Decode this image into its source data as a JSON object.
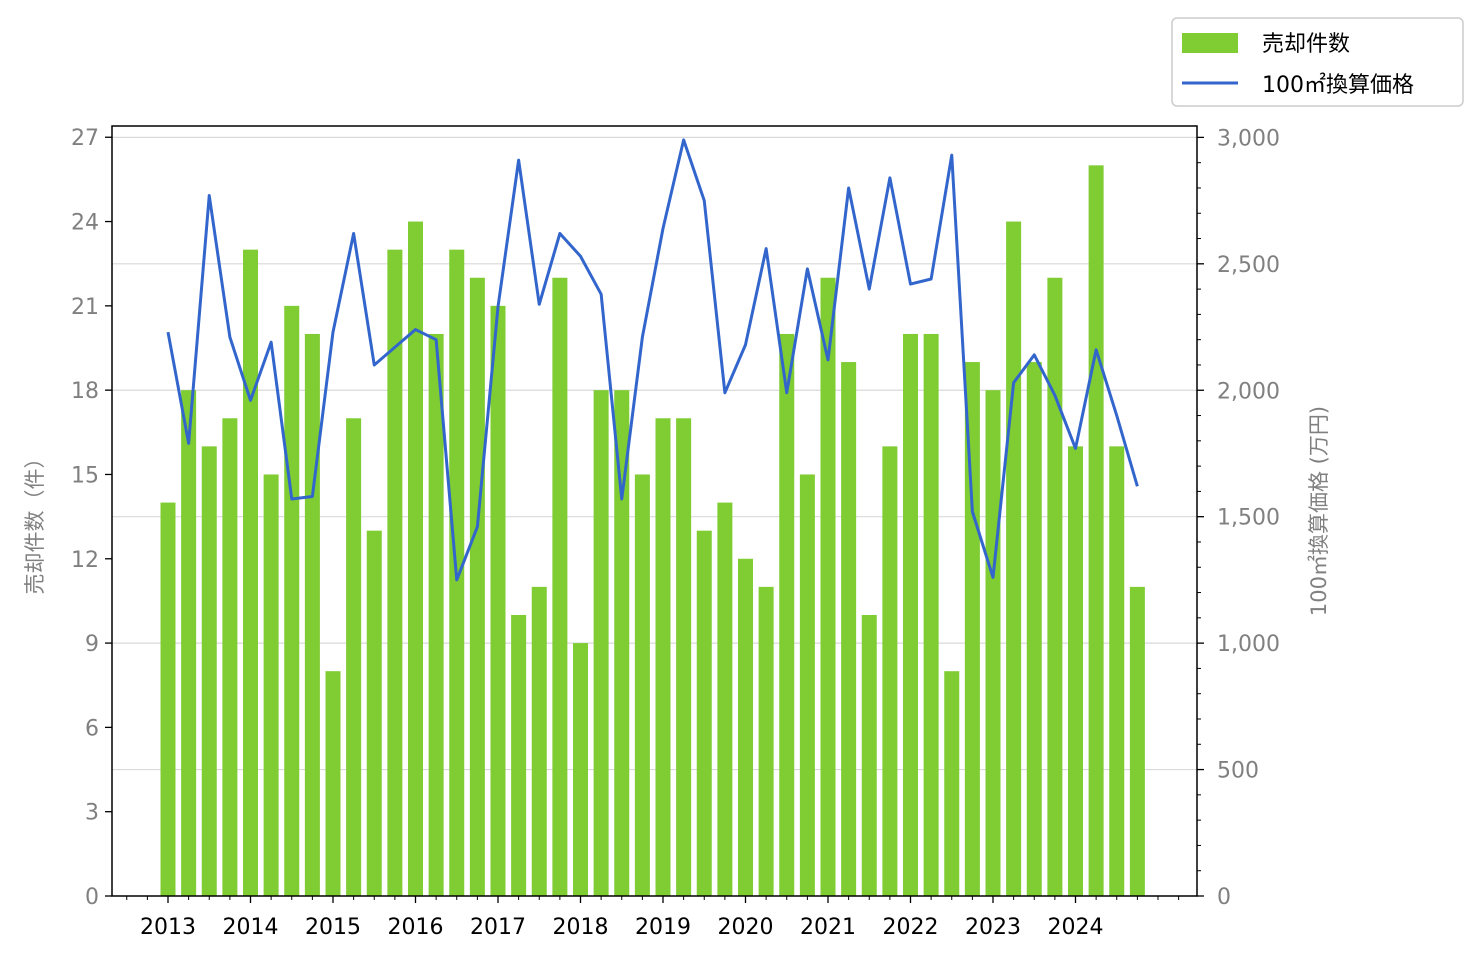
{
  "chart_data": {
    "type": "bar",
    "x": [
      "2013-01",
      "2013-04",
      "2013-07",
      "2013-10",
      "2014-01",
      "2014-04",
      "2014-07",
      "2014-10",
      "2015-01",
      "2015-04",
      "2015-07",
      "2015-10",
      "2016-01",
      "2016-04",
      "2016-07",
      "2016-10",
      "2017-01",
      "2017-04",
      "2017-07",
      "2017-10",
      "2018-01",
      "2018-04",
      "2018-07",
      "2018-10",
      "2019-01",
      "2019-04",
      "2019-07",
      "2019-10",
      "2020-01",
      "2020-04",
      "2020-07",
      "2020-10",
      "2021-01",
      "2021-04",
      "2021-07",
      "2021-10",
      "2022-01",
      "2022-04",
      "2022-07",
      "2022-10",
      "2023-01",
      "2023-04",
      "2023-07",
      "2023-10",
      "2024-01",
      "2024-04",
      "2024-07",
      "2024-10"
    ],
    "x_tick_labels": [
      "2013",
      "2014",
      "2015",
      "2016",
      "2017",
      "2018",
      "2019",
      "2020",
      "2021",
      "2022",
      "2023",
      "2024"
    ],
    "series": [
      {
        "name": "売却件数",
        "type": "bar",
        "axis": "left",
        "color": "#7fcc33",
        "values": [
          14,
          18,
          16,
          17,
          23,
          15,
          21,
          20,
          8,
          17,
          13,
          23,
          24,
          20,
          23,
          22,
          21,
          10,
          11,
          22,
          9,
          18,
          18,
          15,
          17,
          17,
          13,
          14,
          12,
          11,
          20,
          15,
          22,
          19,
          10,
          16,
          20,
          20,
          8,
          19,
          18,
          24,
          19,
          22,
          16,
          26,
          16,
          11
        ]
      },
      {
        "name": "100㎡換算価格",
        "type": "line",
        "axis": "right",
        "color": "#3366cc",
        "values": [
          2230,
          1790,
          2770,
          2210,
          1960,
          2190,
          1570,
          1580,
          2230,
          2620,
          2100,
          2170,
          2240,
          2200,
          1250,
          1460,
          2330,
          2910,
          2340,
          2620,
          2530,
          2380,
          1570,
          2210,
          2640,
          2990,
          2750,
          1990,
          2180,
          2560,
          1990,
          2480,
          2120,
          2800,
          2400,
          2840,
          2420,
          2440,
          2930,
          1520,
          1260,
          2030,
          2140,
          1980,
          1770,
          2160,
          1900,
          1620
        ]
      }
    ],
    "y_left": {
      "label": "売却件数（件）",
      "range": [
        0,
        27.4
      ],
      "ticks": [
        "0",
        "3",
        "6",
        "9",
        "12",
        "15",
        "18",
        "21",
        "24",
        "27"
      ]
    },
    "y_right": {
      "label": "100㎡換算価格 (万円)",
      "range": [
        0,
        3045
      ],
      "ticks": [
        "0",
        "500",
        "1,000",
        "1,500",
        "2,000",
        "2,500",
        "3,000"
      ]
    },
    "grid": "horizontal (right axis)",
    "legend": "top-right, outside plot"
  }
}
